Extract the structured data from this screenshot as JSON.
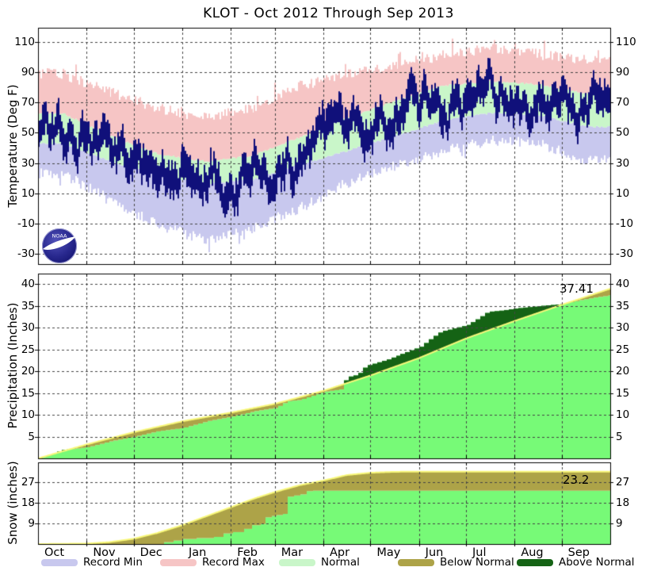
{
  "title": "KLOT - Oct 2012 Through Sep 2013",
  "months": [
    "Oct",
    "Nov",
    "Dec",
    "Jan",
    "Feb",
    "Mar",
    "Apr",
    "May",
    "Jun",
    "Jul",
    "Aug",
    "Sep"
  ],
  "month_start_days": [
    0,
    31,
    61,
    92,
    123,
    151,
    182,
    212,
    243,
    273,
    304,
    334
  ],
  "colors": {
    "record_min": "#c8c8ee",
    "record_max": "#f6c5c5",
    "normal": "#c9f6c9",
    "observed_temp": "#10107a",
    "observed_cumulative": "#77fa77",
    "below_normal": "#ada348",
    "above_normal": "#156315",
    "normal_line": "#f8f87a",
    "grid": "#444444",
    "frame": "#000000"
  },
  "legend": [
    {
      "label": "Record Min",
      "color_key": "record_min"
    },
    {
      "label": "Record Max",
      "color_key": "record_max"
    },
    {
      "label": "Normal",
      "color_key": "normal"
    },
    {
      "label": "Below Normal",
      "color_key": "below_normal"
    },
    {
      "label": "Above Normal",
      "color_key": "above_normal"
    }
  ],
  "noaa_logo": {
    "text": "NOAA"
  },
  "chart_data": [
    {
      "type": "band-range",
      "name": "temperature",
      "ylabel": "Temperature (Deg F)",
      "yticks": [
        -30,
        -10,
        10,
        30,
        50,
        70,
        90,
        110
      ],
      "ylim": [
        -37,
        119
      ],
      "grid": true,
      "series": {
        "record_high_monthly": [
          87,
          75,
          64,
          58,
          64,
          79,
          87,
          93,
          99,
          104,
          100,
          96
        ],
        "normal_high_monthly": [
          63,
          48,
          36,
          31,
          35,
          47,
          60,
          71,
          81,
          84,
          82,
          76
        ],
        "normal_low_monthly": [
          43,
          31,
          22,
          16,
          19,
          29,
          38,
          48,
          58,
          63,
          62,
          54
        ],
        "record_low_monthly": [
          25,
          8,
          -9,
          -19,
          -11,
          2,
          19,
          30,
          40,
          47,
          45,
          34
        ],
        "observed_mid_monthly": [
          54,
          40,
          30,
          25,
          26,
          31,
          50,
          63,
          70,
          75,
          73,
          70
        ]
      }
    },
    {
      "type": "area",
      "name": "precipitation",
      "ylabel": "Precipitation (Inches)",
      "yticks": [
        5,
        10,
        15,
        20,
        25,
        30,
        35,
        40
      ],
      "ylim": [
        0,
        42.4
      ],
      "grid": true,
      "total": 37.41,
      "total_label": "37.41",
      "normal_cumulative": [
        [
          0,
          0
        ],
        [
          31,
          3.2
        ],
        [
          61,
          6.0
        ],
        [
          92,
          8.5
        ],
        [
          123,
          10.5
        ],
        [
          151,
          12.5
        ],
        [
          182,
          15.5
        ],
        [
          212,
          19.0
        ],
        [
          243,
          23.0
        ],
        [
          273,
          27.5
        ],
        [
          304,
          31.5
        ],
        [
          334,
          35.2
        ],
        [
          365,
          38.9
        ]
      ],
      "observed_cumulative": [
        [
          0,
          0
        ],
        [
          8,
          0.9
        ],
        [
          14,
          1.9
        ],
        [
          20,
          2.1
        ],
        [
          31,
          2.6
        ],
        [
          45,
          3.9
        ],
        [
          61,
          5.0
        ],
        [
          75,
          6.2
        ],
        [
          92,
          7.0
        ],
        [
          108,
          8.6
        ],
        [
          123,
          9.6
        ],
        [
          137,
          10.8
        ],
        [
          151,
          11.6
        ],
        [
          158,
          13.1
        ],
        [
          166,
          13.4
        ],
        [
          182,
          15.3
        ],
        [
          192,
          15.8
        ],
        [
          196,
          18.6
        ],
        [
          203,
          19.2
        ],
        [
          208,
          21.2
        ],
        [
          212,
          21.6
        ],
        [
          222,
          22.7
        ],
        [
          232,
          24.1
        ],
        [
          243,
          25.6
        ],
        [
          250,
          27.6
        ],
        [
          256,
          29.1
        ],
        [
          262,
          29.6
        ],
        [
          273,
          30.6
        ],
        [
          280,
          32.1
        ],
        [
          286,
          33.6
        ],
        [
          295,
          33.9
        ],
        [
          304,
          34.4
        ],
        [
          318,
          34.9
        ],
        [
          334,
          35.4
        ],
        [
          345,
          36.3
        ],
        [
          356,
          37.0
        ],
        [
          365,
          37.41
        ]
      ]
    },
    {
      "type": "area",
      "name": "snow",
      "ylabel": "Snow (inches)",
      "yticks": [
        9,
        18,
        27
      ],
      "ylim": [
        0,
        35.5
      ],
      "grid": true,
      "total": 23.2,
      "total_label": "23.2",
      "normal_cumulative": [
        [
          0,
          0
        ],
        [
          31,
          0.2
        ],
        [
          45,
          0.8
        ],
        [
          61,
          2.3
        ],
        [
          76,
          4.8
        ],
        [
          92,
          8.2
        ],
        [
          107,
          12.0
        ],
        [
          123,
          16.0
        ],
        [
          138,
          19.8
        ],
        [
          151,
          22.6
        ],
        [
          167,
          25.6
        ],
        [
          182,
          27.6
        ],
        [
          197,
          30.0
        ],
        [
          212,
          31.0
        ],
        [
          227,
          31.4
        ],
        [
          243,
          31.5
        ],
        [
          365,
          31.5
        ]
      ],
      "observed_cumulative": [
        [
          0,
          0
        ],
        [
          76,
          0
        ],
        [
          80,
          0.8
        ],
        [
          86,
          1.5
        ],
        [
          92,
          2.2
        ],
        [
          101,
          2.6
        ],
        [
          112,
          3.1
        ],
        [
          118,
          4.6
        ],
        [
          124,
          5.2
        ],
        [
          131,
          6.6
        ],
        [
          136,
          8.2
        ],
        [
          142,
          8.7
        ],
        [
          145,
          11.6
        ],
        [
          149,
          12.2
        ],
        [
          152,
          12.6
        ],
        [
          156,
          13.1
        ],
        [
          159,
          20.6
        ],
        [
          163,
          21.1
        ],
        [
          167,
          21.6
        ],
        [
          171,
          23.0
        ],
        [
          175,
          23.2
        ],
        [
          365,
          23.2
        ]
      ]
    }
  ]
}
